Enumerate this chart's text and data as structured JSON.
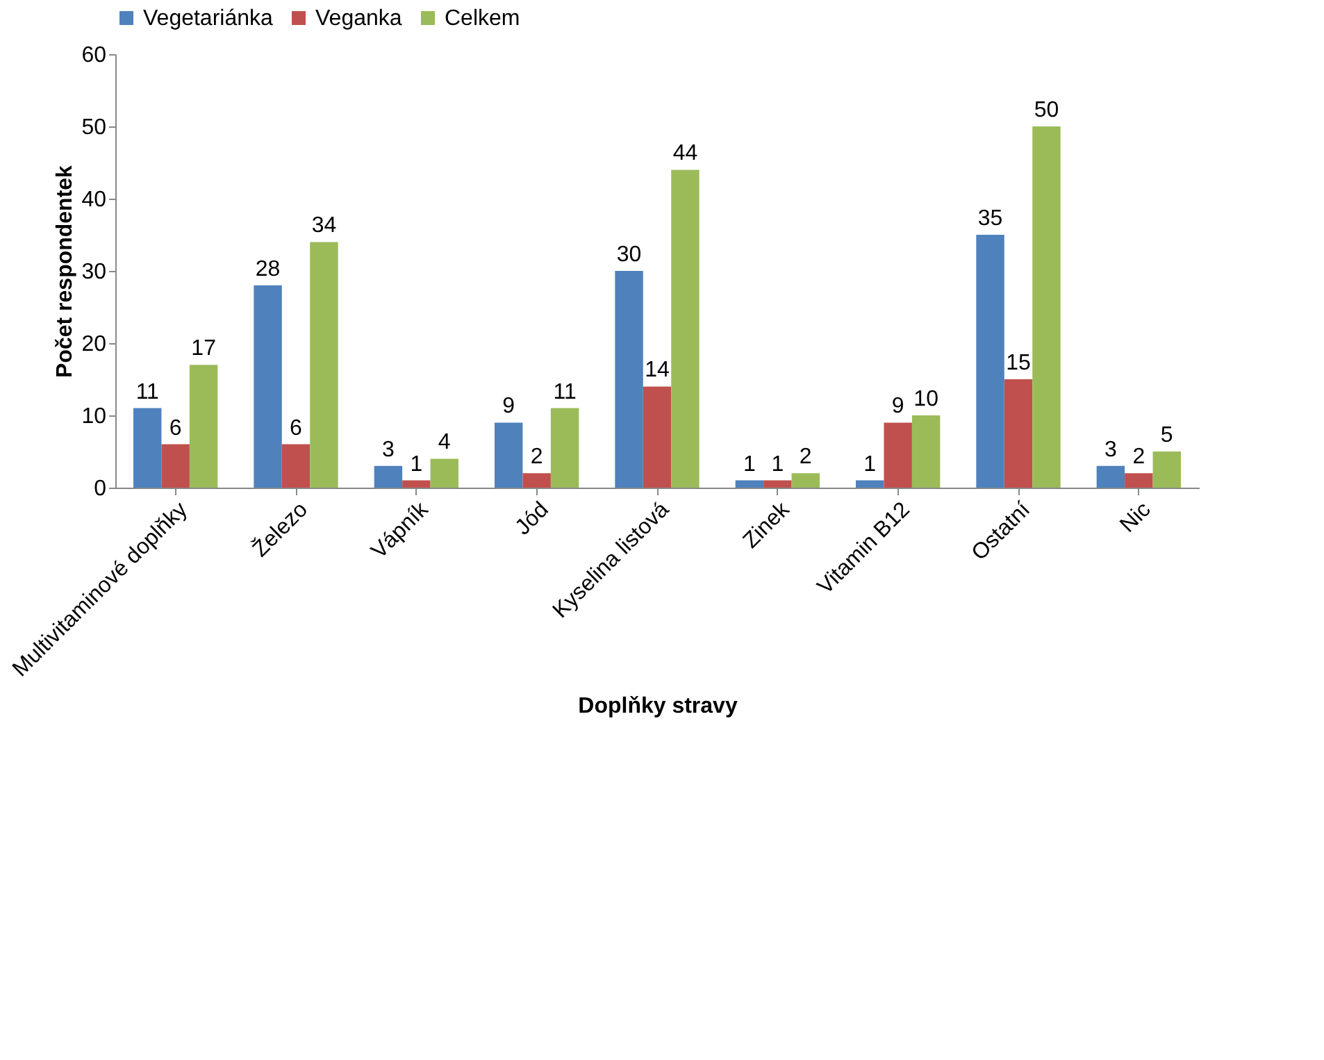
{
  "chart_data": {
    "type": "bar",
    "xlabel": "Doplňky stravy",
    "ylabel": "Počet respondentek",
    "categories": [
      "Multivitaminové doplňky",
      "Železo",
      "Vápník",
      "Jód",
      "Kyselina listová",
      "Zinek",
      "Vitamin B12",
      "Ostatní",
      "Nic"
    ],
    "series": [
      {
        "name": "Vegetariánka",
        "color": "#4f81bd",
        "values": [
          11,
          28,
          3,
          9,
          30,
          1,
          1,
          35,
          3
        ]
      },
      {
        "name": "Veganka",
        "color": "#c0504d",
        "values": [
          6,
          6,
          1,
          2,
          14,
          1,
          9,
          15,
          2
        ]
      },
      {
        "name": "Celkem",
        "color": "#9bbb59",
        "values": [
          17,
          34,
          4,
          11,
          44,
          2,
          10,
          50,
          5
        ]
      }
    ],
    "ylim": [
      0,
      60
    ],
    "yticks": [
      0,
      10,
      20,
      30,
      40,
      50,
      60
    ],
    "grid": false,
    "legend": "top",
    "data_labels": true
  }
}
